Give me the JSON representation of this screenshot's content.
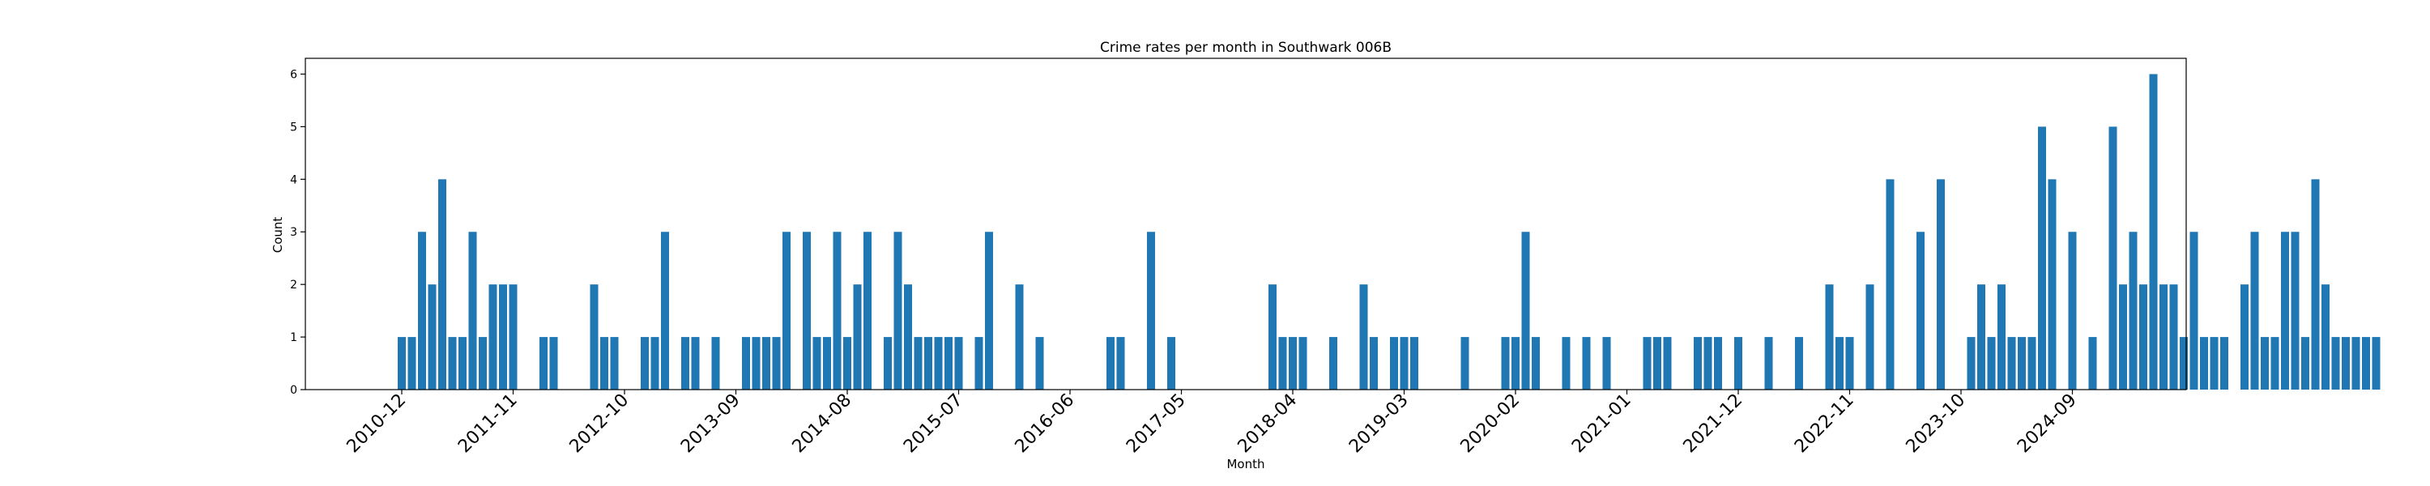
{
  "chart_data": {
    "type": "bar",
    "title": "Crime rates per month in Southwark 006B",
    "xlabel": "Month",
    "ylabel": "Count",
    "ylim": [
      0,
      6.3
    ],
    "yticks": [
      0,
      1,
      2,
      3,
      4,
      5,
      6
    ],
    "xtick_labels": [
      "2010-12",
      "2011-11",
      "2012-10",
      "2013-09",
      "2014-08",
      "2015-07",
      "2016-06",
      "2017-05",
      "2018-04",
      "2019-03",
      "2020-02",
      "2021-01",
      "2021-12",
      "2022-11",
      "2023-10",
      "2024-09"
    ],
    "grid": false,
    "color": "#1f77b4",
    "categories": [
      "2010-12",
      "2011-01",
      "2011-02",
      "2011-03",
      "2011-04",
      "2011-05",
      "2011-06",
      "2011-07",
      "2011-08",
      "2011-09",
      "2011-10",
      "2011-11",
      "2012-01",
      "2012-03",
      "2012-04",
      "2012-05",
      "2012-06",
      "2012-07",
      "2012-08",
      "2012-09",
      "2012-10",
      "2012-11",
      "2012-12",
      "2013-03",
      "2013-04",
      "2013-05",
      "2013-06",
      "2013-07",
      "2013-09",
      "2013-10",
      "2013-11",
      "2013-12",
      "2014-01",
      "2014-02",
      "2014-03",
      "2014-05",
      "2014-06",
      "2014-07",
      "2014-08",
      "2014-09",
      "2014-10",
      "2014-11",
      "2014-12",
      "2015-01",
      "2015-03",
      "2015-04",
      "2015-05",
      "2015-07",
      "2015-09",
      "2015-11",
      "2016-05",
      "2016-06",
      "2016-09",
      "2016-10",
      "2016-11",
      "2017-03",
      "2017-05",
      "2017-06",
      "2017-07",
      "2017-09",
      "2017-10",
      "2017-11",
      "2017-12",
      "2018-01",
      "2018-02",
      "2018-04",
      "2018-09",
      "2018-10",
      "2018-11",
      "2018-12",
      "2019-01",
      "2019-03",
      "2019-04",
      "2019-06",
      "2019-08",
      "2019-09",
      "2019-11",
      "2020-01",
      "2020-02",
      "2020-04",
      "2020-05",
      "2020-06",
      "2020-07",
      "2020-09",
      "2020-11",
      "2021-01",
      "2021-02",
      "2021-03",
      "2021-04",
      "2021-06",
      "2021-08",
      "2021-10",
      "2021-11",
      "2022-01",
      "2022-03",
      "2022-05",
      "2022-07",
      "2022-08",
      "2022-09",
      "2022-10",
      "2022-11",
      "2022-12",
      "2023-01",
      "2023-02",
      "2023-03",
      "2023-04",
      "2023-05",
      "2023-06",
      "2023-08",
      "2023-09",
      "2023-10",
      "2023-11",
      "2023-12",
      "2024-02",
      "2024-03",
      "2024-04",
      "2024-05",
      "2024-06",
      "2024-08",
      "2024-09",
      "2024-10",
      "2024-11"
    ],
    "x_index": [
      0,
      1,
      2,
      3,
      4,
      5,
      6,
      7,
      8,
      9,
      10,
      11,
      14,
      15,
      19,
      20,
      21,
      24,
      25,
      26,
      28,
      29,
      31,
      34,
      35,
      36,
      37,
      38,
      40,
      41,
      42,
      43,
      44,
      45,
      46,
      48,
      49,
      50,
      51,
      52,
      53,
      54,
      55,
      57,
      58,
      61,
      63,
      70,
      71,
      74,
      76,
      86,
      87,
      88,
      89,
      92,
      95,
      96,
      98,
      99,
      100,
      105,
      109,
      110,
      111,
      112,
      115,
      117,
      119,
      123,
      124,
      125,
      128,
      129,
      130,
      132,
      135,
      138,
      141,
      142,
      143,
      145,
      147,
      150,
      152,
      155,
      156,
      157,
      158,
      159,
      160,
      161,
      162,
      163,
      165,
      167,
      169,
      170,
      171,
      172,
      173,
      174,
      175,
      176,
      177,
      178,
      179,
      180,
      182,
      183,
      184,
      185,
      186,
      187,
      188,
      189,
      190,
      191,
      192,
      193,
      194,
      195
    ],
    "values": [
      1,
      1,
      3,
      2,
      4,
      1,
      1,
      3,
      1,
      2,
      2,
      2,
      1,
      1,
      2,
      1,
      1,
      1,
      1,
      3,
      1,
      1,
      1,
      1,
      1,
      1,
      1,
      3,
      3,
      1,
      1,
      3,
      1,
      2,
      3,
      1,
      3,
      2,
      1,
      1,
      1,
      1,
      1,
      1,
      3,
      2,
      1,
      1,
      1,
      3,
      1,
      2,
      1,
      1,
      1,
      1,
      2,
      1,
      1,
      1,
      1,
      1,
      1,
      1,
      3,
      1,
      1,
      1,
      1,
      1,
      1,
      1,
      1,
      1,
      1,
      1,
      1,
      1,
      2,
      1,
      1,
      2,
      4,
      3,
      4,
      1,
      2,
      1,
      2,
      1,
      1,
      1,
      5,
      4,
      3,
      1,
      5,
      2,
      3,
      2,
      6,
      2,
      2,
      1,
      3,
      1,
      1,
      1,
      2,
      3,
      1,
      1,
      3,
      3,
      1,
      4,
      2,
      1,
      1,
      1,
      1,
      1
    ]
  }
}
